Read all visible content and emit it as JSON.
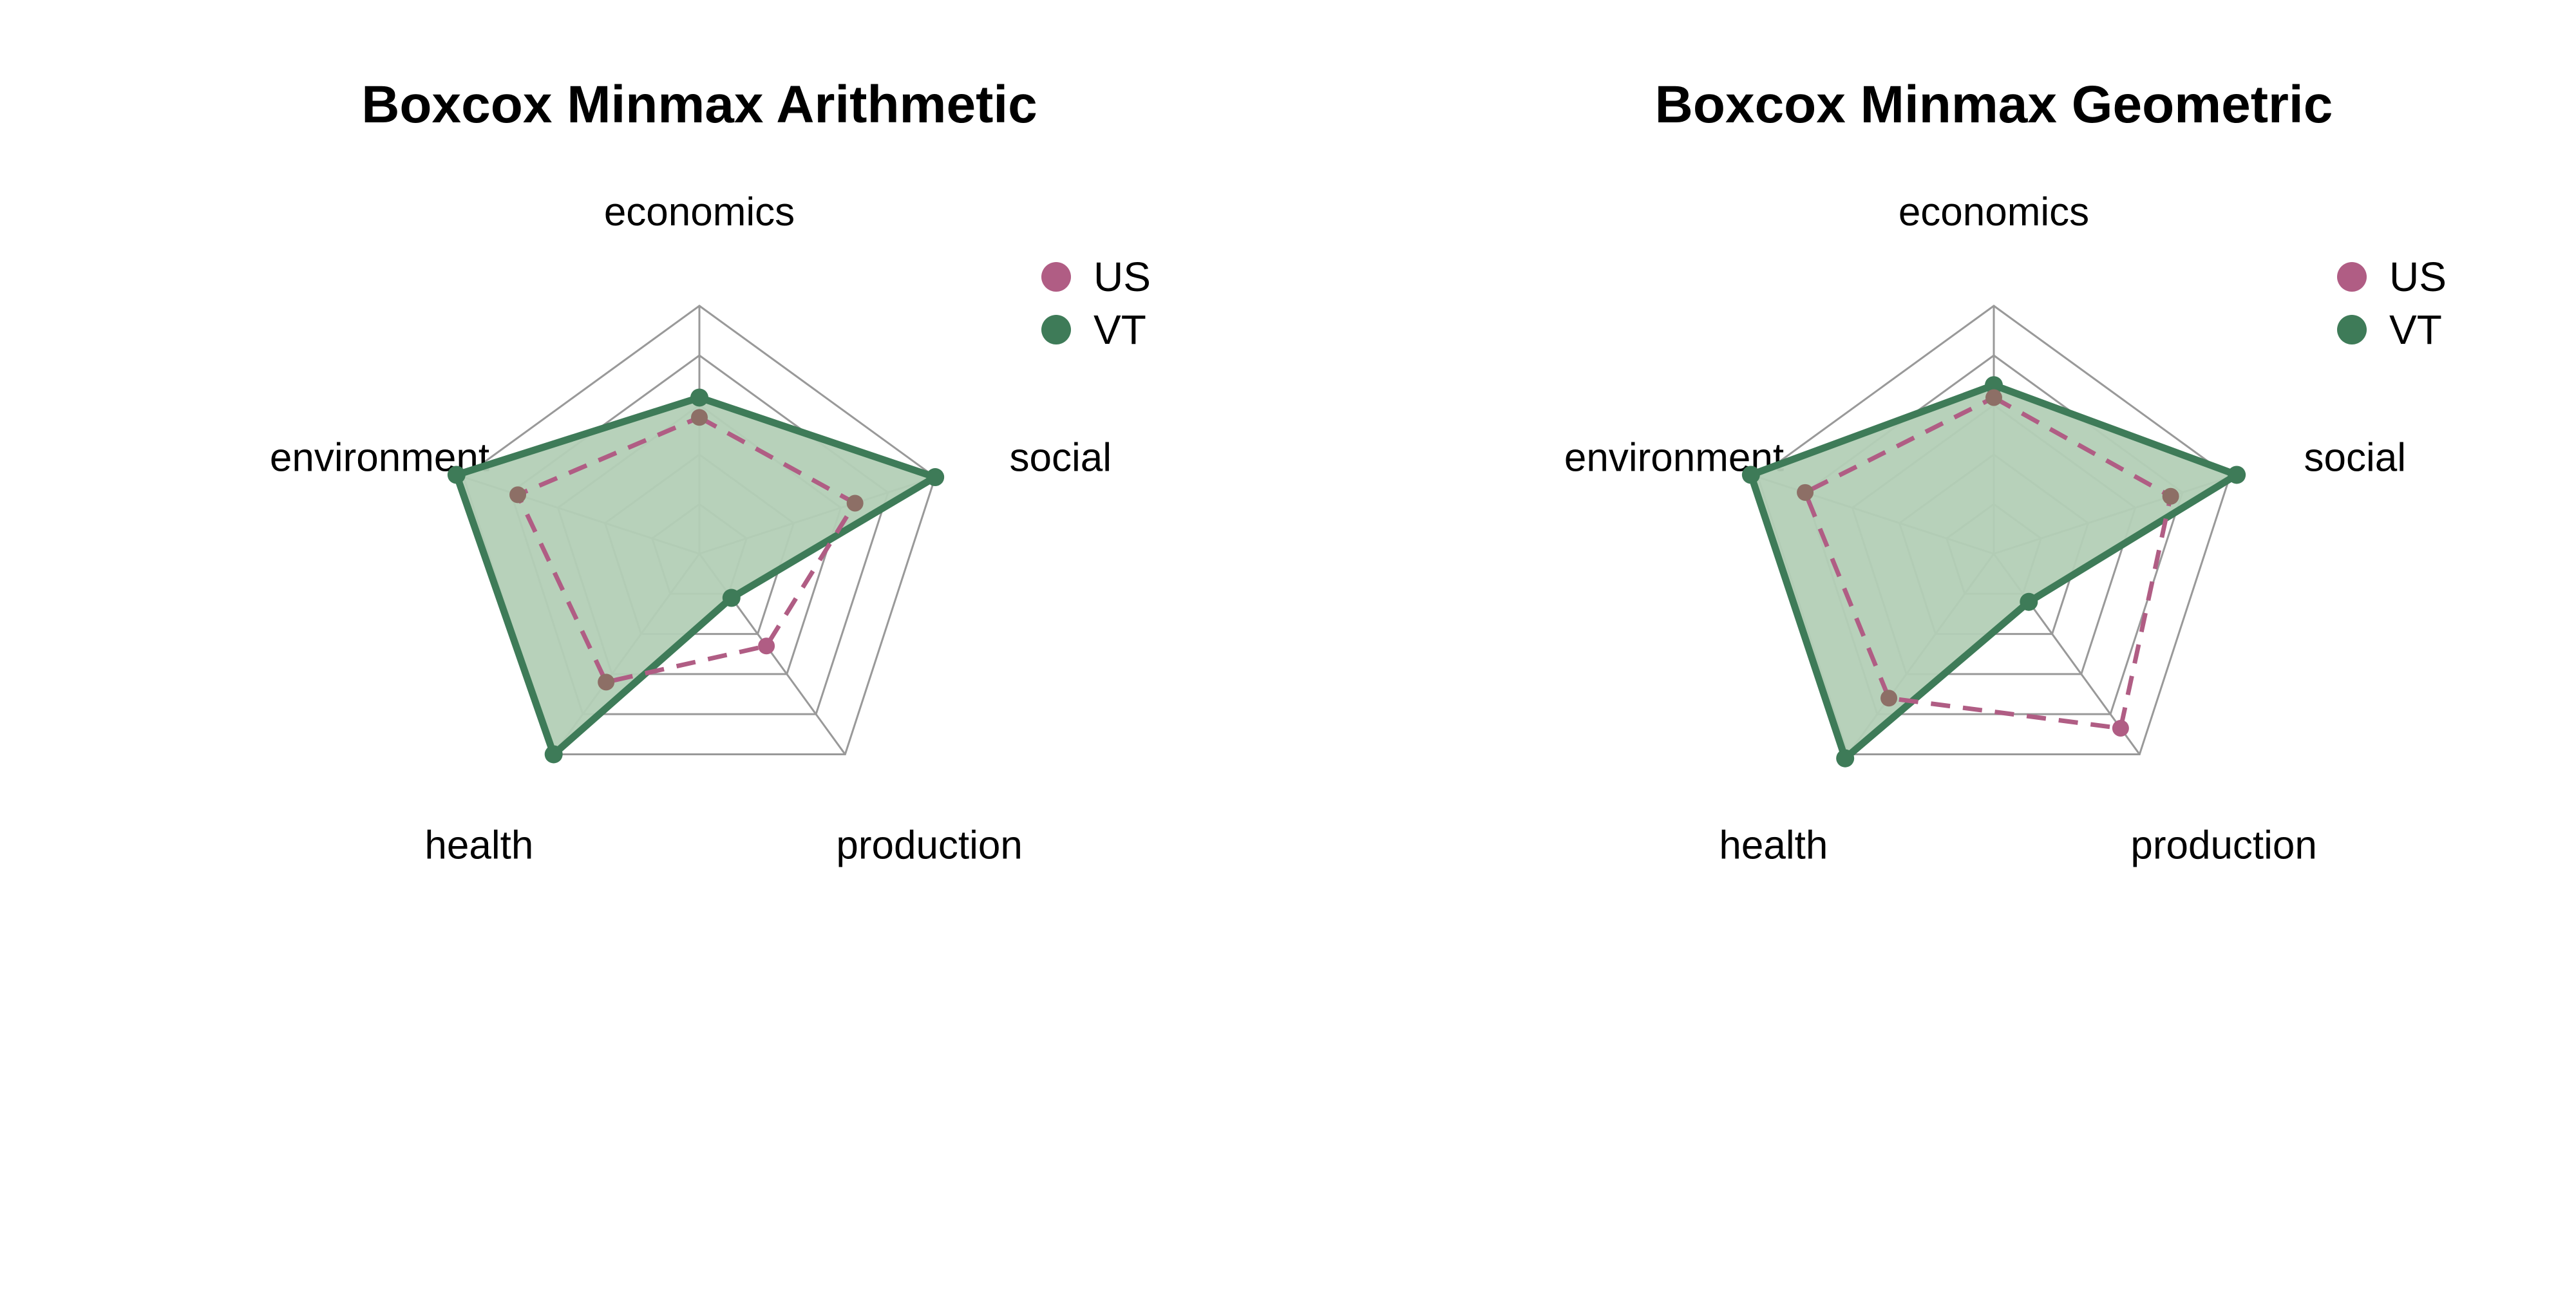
{
  "colors": {
    "us": "#b05d84",
    "vt": "#3e7b58",
    "vt_fill": "#b3cfb6",
    "grid": "#999999",
    "overlap_point": "#8d6f66"
  },
  "legend": [
    {
      "label": "US",
      "color_key": "us"
    },
    {
      "label": "VT",
      "color_key": "vt"
    }
  ],
  "chart_data": [
    {
      "type": "radar",
      "title": "Boxcox Minmax Arithmetic",
      "axes": [
        "economics",
        "social",
        "production",
        "health",
        "environment"
      ],
      "range": [
        0,
        1
      ],
      "grid_levels": 5,
      "series": [
        {
          "name": "US",
          "line_style": "dashed",
          "filled": false,
          "values": [
            0.55,
            0.66,
            0.46,
            0.64,
            0.77
          ]
        },
        {
          "name": "VT",
          "line_style": "solid",
          "filled": true,
          "values": [
            0.63,
            1.0,
            0.22,
            1.0,
            1.03
          ]
        }
      ]
    },
    {
      "type": "radar",
      "title": "Boxcox Minmax Geometric",
      "axes": [
        "economics",
        "social",
        "production",
        "health",
        "environment"
      ],
      "range": [
        0,
        1
      ],
      "grid_levels": 5,
      "series": [
        {
          "name": "US",
          "line_style": "dashed",
          "filled": false,
          "values": [
            0.63,
            0.75,
            0.87,
            0.72,
            0.8
          ]
        },
        {
          "name": "VT",
          "line_style": "solid",
          "filled": true,
          "values": [
            0.68,
            1.03,
            0.24,
            1.02,
            1.03
          ]
        }
      ]
    }
  ]
}
